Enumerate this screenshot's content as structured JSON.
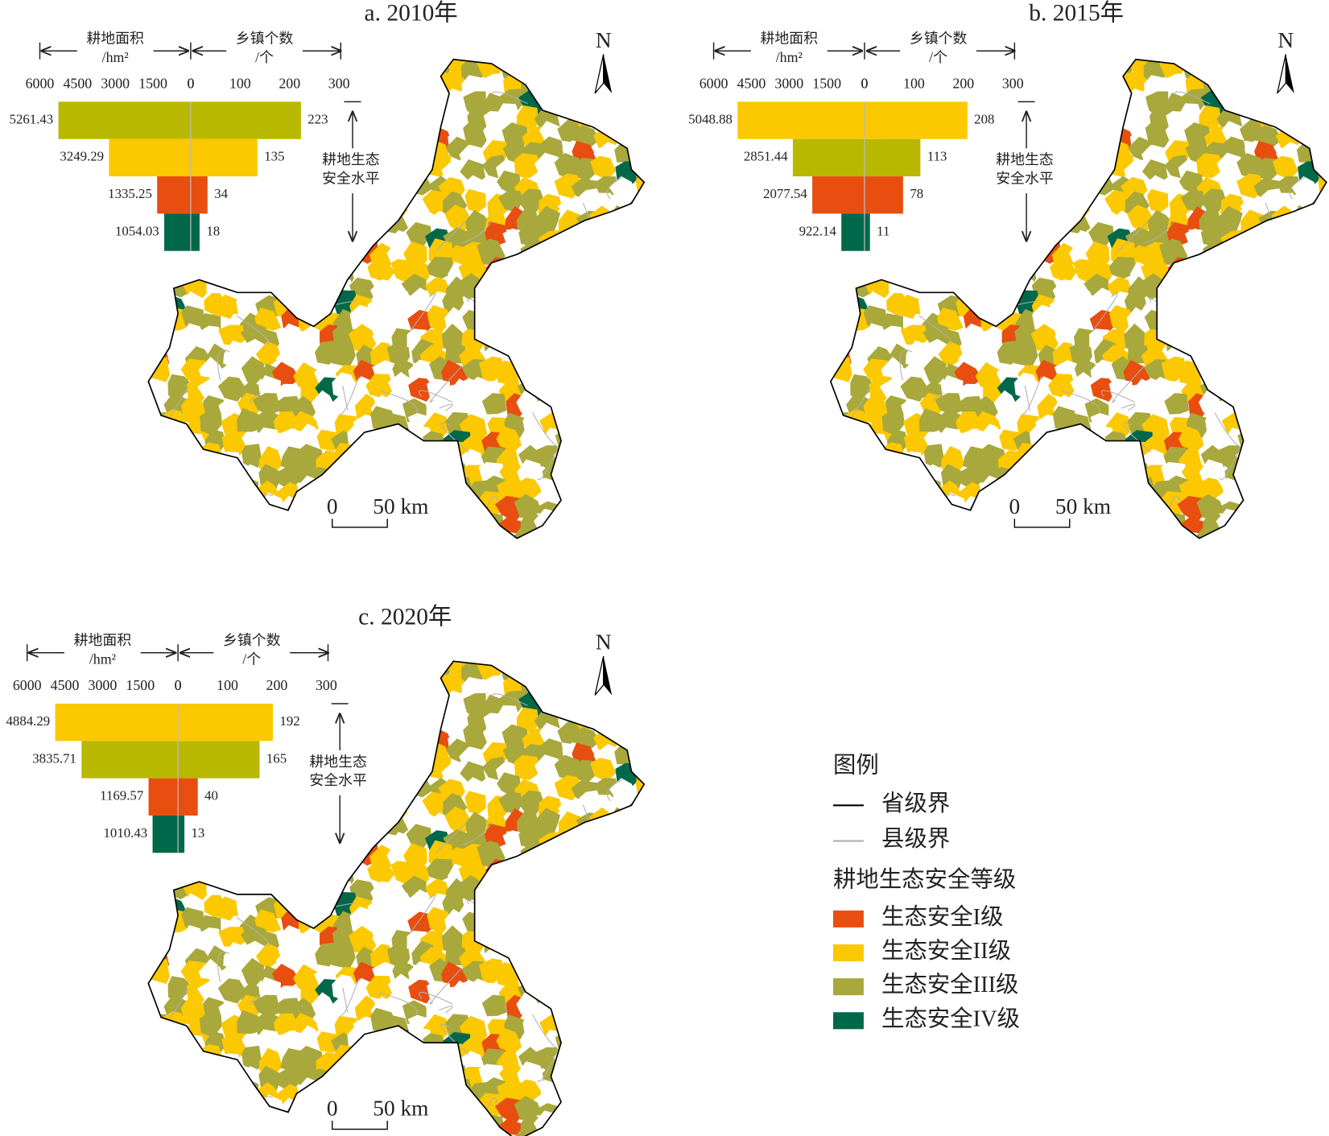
{
  "chart_data": [
    {
      "type": "pyramid",
      "title": "a. 2010年",
      "left_label": [
        "耕地面积",
        "/hm²"
      ],
      "right_label": [
        "乡镇个数",
        "/个"
      ],
      "side_label": [
        "耕地生态",
        "安全水平"
      ],
      "area_xlim": [
        6000,
        0
      ],
      "area_ticks": [
        6000,
        4500,
        3000,
        1500,
        0
      ],
      "count_xlim": [
        0,
        300
      ],
      "count_ticks": [
        0,
        100,
        200,
        300
      ],
      "area": [
        5261.43,
        3249.29,
        1335.25,
        1054.03
      ],
      "count": [
        223,
        135,
        34,
        18
      ],
      "colors": [
        "#b8b800",
        "#fcc800",
        "#e84e0f",
        "#00684a"
      ]
    },
    {
      "type": "pyramid",
      "title": "b. 2015年",
      "left_label": [
        "耕地面积",
        "/hm²"
      ],
      "right_label": [
        "乡镇个数",
        "/个"
      ],
      "side_label": [
        "耕地生态",
        "安全水平"
      ],
      "area_xlim": [
        6000,
        0
      ],
      "area_ticks": [
        6000,
        4500,
        3000,
        1500,
        0
      ],
      "count_xlim": [
        0,
        300
      ],
      "count_ticks": [
        0,
        100,
        200,
        300
      ],
      "area": [
        5048.88,
        2851.44,
        2077.54,
        922.14
      ],
      "count": [
        208,
        113,
        78,
        11
      ],
      "colors": [
        "#fcc800",
        "#b8b800",
        "#e84e0f",
        "#00684a"
      ]
    },
    {
      "type": "pyramid",
      "title": "c. 2020年",
      "left_label": [
        "耕地面积",
        "/hm²"
      ],
      "right_label": [
        "乡镇个数",
        "/个"
      ],
      "side_label": [
        "耕地生态",
        "安全水平"
      ],
      "area_xlim": [
        6000,
        0
      ],
      "area_ticks": [
        6000,
        4500,
        3000,
        1500,
        0
      ],
      "count_xlim": [
        0,
        300
      ],
      "count_ticks": [
        0,
        100,
        200,
        300
      ],
      "area": [
        4884.29,
        3835.71,
        1169.57,
        1010.43
      ],
      "count": [
        192,
        165,
        40,
        13
      ],
      "colors": [
        "#fcc800",
        "#b8b800",
        "#e84e0f",
        "#00684a"
      ]
    }
  ],
  "map": {
    "north": "N",
    "scale": [
      "0",
      "50 km"
    ]
  },
  "legend": {
    "title": "图例",
    "boundaries": [
      {
        "name": "省级界",
        "color": "#000000"
      },
      {
        "name": "县级界",
        "color": "#b0b0b0"
      }
    ],
    "class_title": "耕地生态安全等级",
    "items": [
      {
        "name": "生态安全I级",
        "color": "#e84e0f"
      },
      {
        "name": "生态安全II级",
        "color": "#fcc800"
      },
      {
        "name": "生态安全III级",
        "color": "#a8a83c"
      },
      {
        "name": "生态安全IV级",
        "color": "#00684a"
      }
    ]
  }
}
